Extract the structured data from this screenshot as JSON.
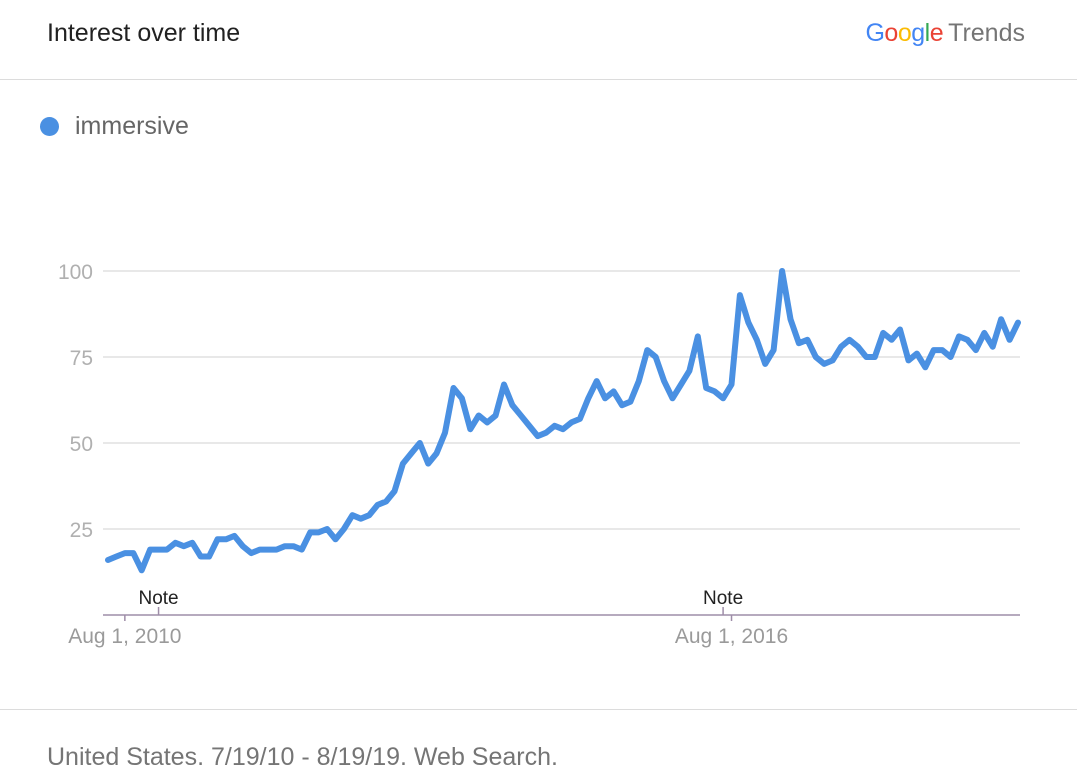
{
  "header": {
    "title": "Interest over time",
    "brand_google_letters": [
      {
        "ch": "G",
        "color": "#4285F4"
      },
      {
        "ch": "o",
        "color": "#EA4335"
      },
      {
        "ch": "o",
        "color": "#FBBC05"
      },
      {
        "ch": "g",
        "color": "#4285F4"
      },
      {
        "ch": "l",
        "color": "#34A853"
      },
      {
        "ch": "e",
        "color": "#EA4335"
      }
    ],
    "brand_suffix": "Trends"
  },
  "legend": {
    "label": "immersive",
    "color": "#4a90e2"
  },
  "footer": {
    "text": "United States. 7/19/10 - 8/19/19. Web Search."
  },
  "chart_data": {
    "type": "line",
    "series": [
      {
        "name": "immersive",
        "color": "#4a90e2",
        "values": [
          16,
          17,
          18,
          18,
          13,
          19,
          19,
          19,
          21,
          20,
          21,
          17,
          17,
          22,
          22,
          23,
          20,
          18,
          19,
          19,
          19,
          20,
          20,
          19,
          24,
          24,
          25,
          22,
          25,
          29,
          28,
          29,
          32,
          33,
          36,
          44,
          47,
          50,
          44,
          47,
          53,
          66,
          63,
          54,
          58,
          56,
          58,
          67,
          61,
          58,
          55,
          52,
          53,
          55,
          54,
          56,
          57,
          63,
          68,
          63,
          65,
          61,
          62,
          68,
          77,
          75,
          68,
          63,
          67,
          71,
          81,
          66,
          65,
          63,
          67,
          93,
          85,
          80,
          73,
          77,
          100,
          86,
          79,
          80,
          75,
          73,
          74,
          78,
          80,
          78,
          75,
          75,
          82,
          80,
          83,
          74,
          76,
          72,
          77,
          77,
          75,
          81,
          80,
          77,
          82,
          78,
          86,
          80,
          85
        ]
      }
    ],
    "yticks": [
      25,
      50,
      75,
      100
    ],
    "ylim": [
      0,
      100
    ],
    "x_tick_labels": [
      "Aug 1, 2010",
      "Aug 1, 2016"
    ],
    "x_tick_index": [
      2,
      74
    ],
    "notes": [
      {
        "label": "Note",
        "index": 6
      },
      {
        "label": "Note",
        "index": 73
      }
    ],
    "grid": true,
    "legend": "top-left"
  }
}
